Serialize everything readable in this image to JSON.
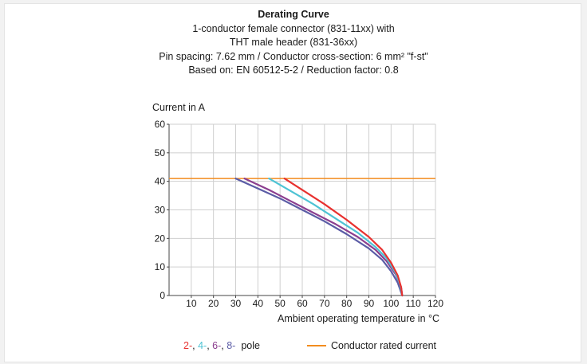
{
  "chart_data": {
    "type": "line",
    "title_lines": [
      "Derating Curve",
      "1-conductor female connector (831-11xx) with",
      "THT male header (831-36xx)",
      "Pin spacing: 7.62 mm / Conductor cross-section: 6 mm² \"f-st\"",
      "Based on: EN 60512-5-2 / Reduction factor: 0.8"
    ],
    "ylabel": "Current in A",
    "xlabel": "Ambient operating temperature in °C",
    "xlim": [
      0,
      120
    ],
    "ylim": [
      0,
      60
    ],
    "x_ticks": [
      10,
      20,
      30,
      40,
      50,
      60,
      70,
      80,
      90,
      100,
      110,
      120
    ],
    "y_ticks": [
      0,
      10,
      20,
      30,
      40,
      50,
      60
    ],
    "grid": true,
    "series": [
      {
        "name": "2-",
        "color": "#e8312f",
        "x": [
          52,
          60,
          70,
          80,
          90,
          96,
          100,
          103,
          104.5,
          105
        ],
        "y": [
          41,
          37,
          32,
          26.5,
          20.5,
          16,
          11.5,
          7,
          3,
          0
        ]
      },
      {
        "name": "4-",
        "color": "#4ec3d4",
        "x": [
          45,
          55,
          65,
          75,
          85,
          93,
          98,
          102,
          104,
          105
        ],
        "y": [
          41,
          36.5,
          32,
          27,
          22,
          17,
          13,
          8,
          4,
          0
        ]
      },
      {
        "name": "6-",
        "color": "#8c3f8f",
        "x": [
          34,
          45,
          55,
          65,
          75,
          85,
          93,
          98,
          102,
          104.5,
          105
        ],
        "y": [
          41,
          37,
          33,
          29,
          25,
          20.5,
          16,
          12,
          7.5,
          3,
          0
        ]
      },
      {
        "name": "8-",
        "color": "#5b5ca6",
        "x": [
          30,
          40,
          50,
          60,
          70,
          80,
          90,
          96,
          100,
          103,
          105
        ],
        "y": [
          41,
          37.5,
          34,
          30,
          26,
          21.5,
          16.5,
          12.5,
          8.5,
          4.5,
          0
        ]
      }
    ],
    "rated_current": {
      "label": "Conductor rated current",
      "value": 41,
      "color": "#f28c1e"
    },
    "pole_legend": {
      "suffix": "pole"
    }
  }
}
